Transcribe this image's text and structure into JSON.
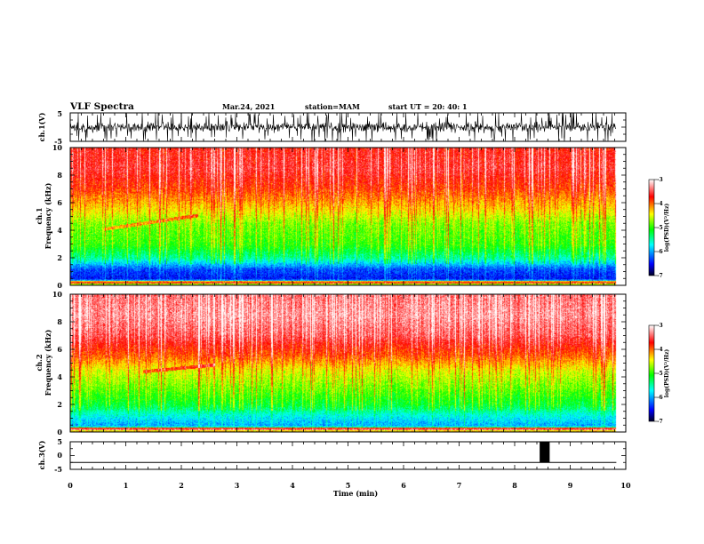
{
  "header": {
    "title": "VLF Spectra",
    "date": "Mar.24, 2021",
    "station": "station=MAM",
    "start": "start UT = 20: 40: 1"
  },
  "chart_data": [
    {
      "type": "line",
      "panel": "ch1-waveform",
      "ylabel": "ch.1(V)",
      "ylim": [
        -5,
        5
      ],
      "yticks": [
        "5",
        "-5"
      ],
      "xlim": [
        0,
        10
      ]
    },
    {
      "type": "heatmap",
      "panel": "ch1-spectrogram",
      "ylabel_line1": "ch.1",
      "ylabel_line2": "Frequency (kHz)",
      "ylim": [
        0,
        10
      ],
      "yticks": [
        "0",
        "2",
        "4",
        "6",
        "8",
        "10"
      ],
      "xlim": [
        0,
        10
      ],
      "data_xmax": 9.83,
      "colorbar": {
        "label": "log(PSD)(V²/Hz)",
        "range": [
          -7,
          -3
        ],
        "ticks": [
          "-3",
          "-4",
          "-5",
          "-6",
          "-7"
        ]
      },
      "profile_freq_khz": [
        0,
        0.5,
        1.2,
        2,
        3,
        4.5,
        5.5,
        7,
        8.5,
        10
      ],
      "profile_log_psd": [
        -4.2,
        -6.5,
        -6.3,
        -5.5,
        -5.0,
        -4.8,
        -4.4,
        -3.9,
        -3.6,
        -3.7
      ],
      "whistler_trace": {
        "start": [
          0.6,
          4.1
        ],
        "end": [
          2.3,
          5.1
        ]
      }
    },
    {
      "type": "heatmap",
      "panel": "ch2-spectrogram",
      "ylabel_line1": "ch.2",
      "ylabel_line2": "Frequency (kHz)",
      "ylim": [
        0,
        10
      ],
      "yticks": [
        "0",
        "2",
        "4",
        "6",
        "8",
        "10"
      ],
      "xlim": [
        0,
        10
      ],
      "data_xmax": 9.83,
      "colorbar": {
        "label": "log(PSD)(V²/Hz)",
        "range": [
          -7,
          -3
        ],
        "ticks": [
          "-3",
          "-4",
          "-5",
          "-6",
          "-7"
        ]
      },
      "profile_freq_khz": [
        0,
        0.5,
        1.2,
        2,
        3,
        4.5,
        5.5,
        7,
        8.5,
        10
      ],
      "profile_log_psd": [
        -4.0,
        -6.0,
        -5.7,
        -5.2,
        -4.9,
        -4.5,
        -4.0,
        -3.5,
        -3.3,
        -3.4
      ],
      "whistler_trace": {
        "start": [
          1.3,
          4.4
        ],
        "end": [
          2.6,
          4.9
        ]
      }
    },
    {
      "type": "line",
      "panel": "ch3-waveform",
      "ylabel": "ch.3(V)",
      "ylim": [
        -5,
        5
      ],
      "yticks": [
        "5",
        "0",
        "-5"
      ],
      "xlim": [
        0,
        10
      ],
      "xlabel": "Time (min)",
      "xticks": [
        "0",
        "1",
        "2",
        "3",
        "4",
        "5",
        "6",
        "7",
        "8",
        "9",
        "10"
      ],
      "baseline_v": -2.5,
      "pulse": {
        "x_start": 8.45,
        "x_end": 8.63,
        "y_low": -2.5,
        "y_high": 5
      }
    }
  ],
  "colors": {
    "colormap": [
      "#000033",
      "#0000ff",
      "#00ffff",
      "#00ff00",
      "#ffff00",
      "#ff0000",
      "#ffffff"
    ],
    "axes": "#000000",
    "background": "#ffffff"
  }
}
